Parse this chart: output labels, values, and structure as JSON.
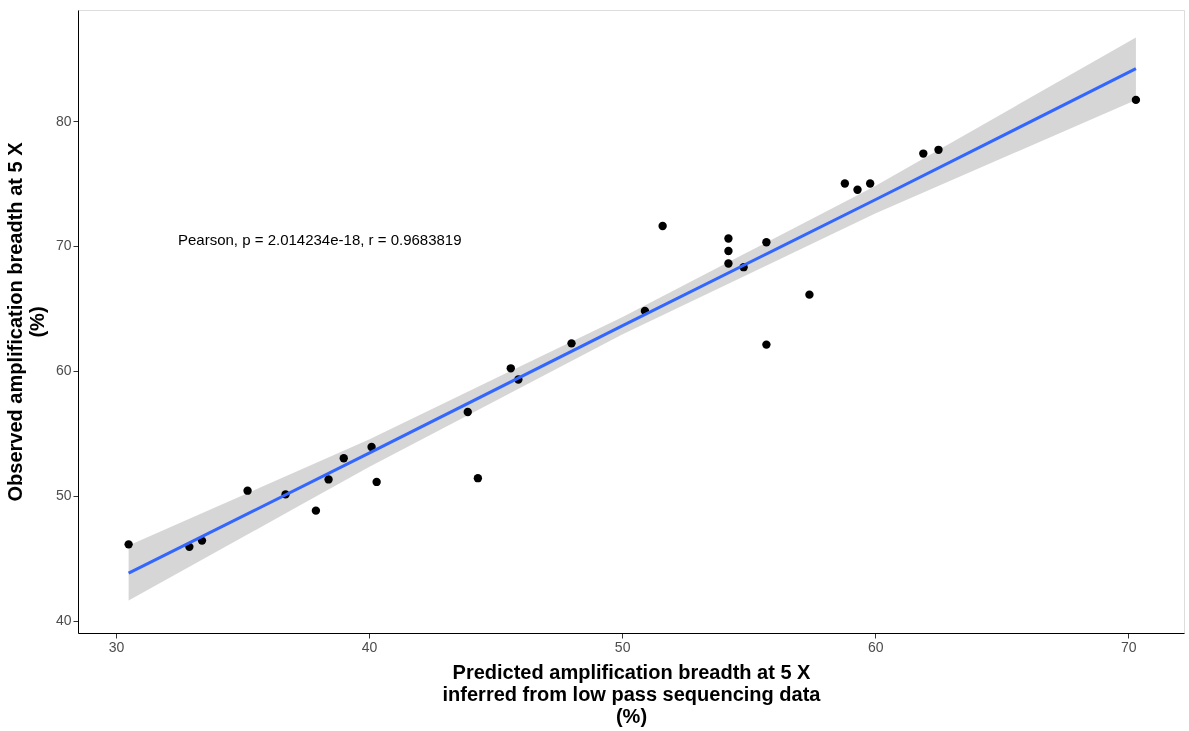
{
  "chart_data": {
    "type": "scatter",
    "xlabel": "Predicted amplification breadth at 5 X\ninferred from low pass sequencing data\n(%)",
    "ylabel": "Observed amplification breadth at 5 X\n(%)",
    "annotations": [
      "Pearson, p = 2.014234e-18, r = 0.9683819"
    ],
    "xlim": [
      28.5,
      72.2
    ],
    "ylim": [
      39.0,
      88.9
    ],
    "xticks": [
      30,
      40,
      50,
      60,
      70
    ],
    "yticks": [
      40,
      50,
      60,
      70,
      80
    ],
    "grid": false,
    "series": [
      {
        "color": "#000000",
        "marker": "circle",
        "x": [
          30.5,
          32.9,
          33.4,
          35.2,
          36.7,
          37.9,
          38.4,
          39.0,
          40.1,
          40.3,
          43.9,
          44.3,
          45.6,
          45.9,
          48.0,
          50.9,
          51.6,
          54.2,
          54.2,
          54.2,
          54.8,
          55.7,
          55.7,
          57.4,
          58.8,
          59.3,
          59.8,
          61.9,
          62.5,
          70.3
        ],
        "values": [
          46.1,
          45.9,
          46.4,
          50.4,
          50.1,
          48.8,
          51.3,
          53.0,
          53.9,
          51.1,
          56.7,
          51.4,
          60.2,
          59.3,
          62.2,
          64.8,
          71.6,
          70.6,
          69.6,
          68.6,
          68.3,
          70.3,
          62.1,
          66.1,
          75.0,
          74.5,
          75.0,
          77.4,
          77.7,
          81.7
        ]
      },
      {
        "type": "line",
        "color": "#3366ff",
        "marker": "none",
        "x": [
          30.5,
          40,
          50,
          60,
          70.3
        ],
        "values": [
          43.8,
          53.4,
          63.6,
          73.7,
          84.2
        ],
        "lower": [
          41.6,
          52.3,
          62.9,
          72.6,
          81.7
        ],
        "upper": [
          46.0,
          54.5,
          64.3,
          74.8,
          86.7
        ]
      }
    ]
  }
}
